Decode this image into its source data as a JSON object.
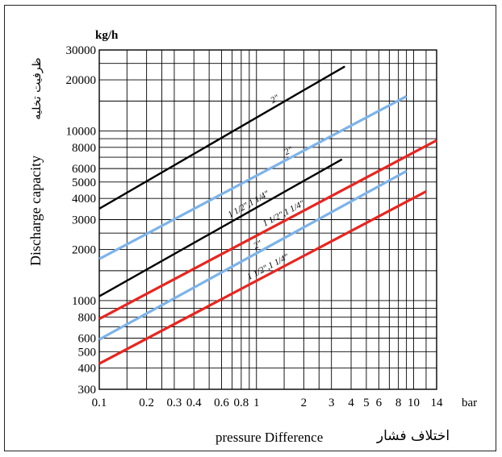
{
  "chart_data": {
    "type": "line",
    "x_scale": "log",
    "y_scale": "log",
    "xlim": [
      0.1,
      14
    ],
    "ylim": [
      300,
      30000
    ],
    "grid": true,
    "ylabel": "Discharge capacity",
    "ylabel_fa": "ظرفیت تخلیه",
    "yunit": "kg/h",
    "xlabel": "pressure Difference",
    "xlabel_fa": "اختلاف فشار",
    "xunit": "bar",
    "x_ticks": [
      {
        "v": 0.1,
        "label": "0.1"
      },
      {
        "v": 0.2,
        "label": "0.2"
      },
      {
        "v": 0.3,
        "label": "0.3"
      },
      {
        "v": 0.4,
        "label": "0.4"
      },
      {
        "v": 0.6,
        "label": "0.6"
      },
      {
        "v": 0.8,
        "label": "0.8"
      },
      {
        "v": 1,
        "label": "1"
      },
      {
        "v": 2,
        "label": "2"
      },
      {
        "v": 3,
        "label": "3"
      },
      {
        "v": 4,
        "label": "4"
      },
      {
        "v": 5,
        "label": "5"
      },
      {
        "v": 6,
        "label": "6"
      },
      {
        "v": 8,
        "label": "8"
      },
      {
        "v": 10,
        "label": "10"
      },
      {
        "v": 14,
        "label": "14"
      }
    ],
    "y_ticks": [
      {
        "v": 300,
        "label": "300"
      },
      {
        "v": 400,
        "label": "400"
      },
      {
        "v": 500,
        "label": "500"
      },
      {
        "v": 600,
        "label": "600"
      },
      {
        "v": 800,
        "label": "800"
      },
      {
        "v": 1000,
        "label": "1000"
      },
      {
        "v": 2000,
        "label": "2000"
      },
      {
        "v": 3000,
        "label": "3000"
      },
      {
        "v": 4000,
        "label": "4000"
      },
      {
        "v": 5000,
        "label": "5000"
      },
      {
        "v": 6000,
        "label": "6000"
      },
      {
        "v": 8000,
        "label": "8000"
      },
      {
        "v": 10000,
        "label": "10000"
      },
      {
        "v": 20000,
        "label": "20000"
      },
      {
        "v": 30000,
        "label": "30000"
      }
    ],
    "x_grid": [
      0.1,
      0.15,
      0.2,
      0.25,
      0.3,
      0.4,
      0.5,
      0.6,
      0.7,
      0.8,
      0.9,
      1,
      1.5,
      2,
      2.5,
      3,
      4,
      5,
      6,
      7,
      8,
      9,
      10,
      12,
      14
    ],
    "y_grid": [
      300,
      400,
      500,
      600,
      700,
      800,
      900,
      1000,
      1500,
      2000,
      2500,
      3000,
      4000,
      5000,
      6000,
      7000,
      8000,
      9000,
      10000,
      15000,
      20000,
      25000,
      30000
    ],
    "series": [
      {
        "name": "2\"",
        "color": "#000000",
        "x": [
          0.1,
          3.65
        ],
        "y": [
          3480,
          24000
        ]
      },
      {
        "name": "2\"",
        "color": "#7db3ea",
        "x": [
          0.1,
          9.0
        ],
        "y": [
          1760,
          16000
        ]
      },
      {
        "name": "1 1/2\",1 1/4\"",
        "color": "#000000",
        "x": [
          0.1,
          3.5
        ],
        "y": [
          1060,
          6800
        ]
      },
      {
        "name": "1 1/2\",1 1/4\"",
        "color": "#e8251f",
        "x": [
          0.1,
          14
        ],
        "y": [
          780,
          8800
        ]
      },
      {
        "name": "2\"",
        "color": "#7db3ea",
        "x": [
          0.1,
          9.0
        ],
        "y": [
          590,
          5800
        ]
      },
      {
        "name": "1 1/2\",1 1/4\"",
        "color": "#e8251f",
        "x": [
          0.1,
          12
        ],
        "y": [
          425,
          4400
        ]
      }
    ]
  }
}
